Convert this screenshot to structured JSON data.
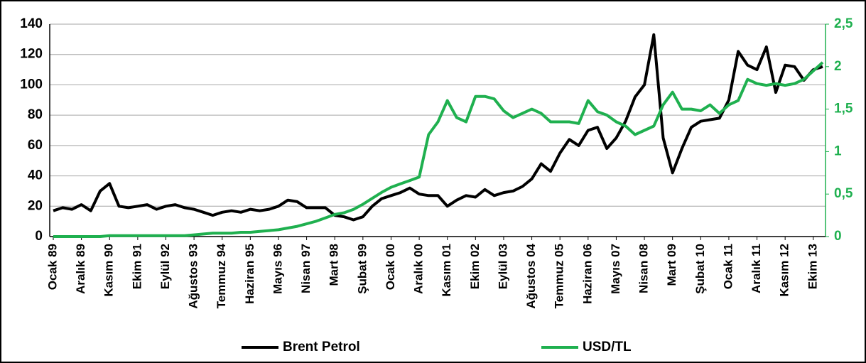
{
  "chart_data": {
    "type": "line",
    "categories": [
      "Ocak 89",
      null,
      null,
      "Aralık 89",
      null,
      null,
      "Kasım 90",
      null,
      null,
      "Ekim 91",
      null,
      null,
      "Eylül 92",
      null,
      null,
      "Ağustos 93",
      null,
      null,
      "Temmuz 94",
      null,
      null,
      "Haziran 95",
      null,
      null,
      "Mayıs 96",
      null,
      null,
      "Nisan 97",
      null,
      null,
      "Mart 98",
      null,
      null,
      "Şubat 99",
      null,
      null,
      "Ocak 00",
      null,
      null,
      "Aralık 00",
      null,
      null,
      "Kasım 01",
      null,
      null,
      "Ekim 02",
      null,
      null,
      "Eylül 03",
      null,
      null,
      "Ağustos 04",
      null,
      null,
      "Temmuz 05",
      null,
      null,
      "Haziran 06",
      null,
      null,
      "Mayıs 07",
      null,
      null,
      "Nisan 08",
      null,
      null,
      "Mart 09",
      null,
      null,
      "Şubat 10",
      null,
      null,
      "Ocak 11",
      null,
      null,
      "Aralık 11",
      null,
      null,
      "Kasım 12",
      null,
      null,
      "Ekim 13",
      null
    ],
    "series": [
      {
        "name": "Brent Petrol",
        "color": "#000000",
        "values": [
          17,
          19,
          18,
          21,
          17,
          30,
          35,
          20,
          19,
          20,
          21,
          18,
          20,
          21,
          19,
          18,
          16,
          14,
          16,
          17,
          16,
          18,
          17,
          18,
          20,
          24,
          23,
          19,
          19,
          19,
          14,
          13,
          11,
          13,
          20,
          25,
          27,
          29,
          32,
          28,
          27,
          27,
          20,
          24,
          27,
          26,
          31,
          27,
          29,
          30,
          33,
          38,
          48,
          43,
          55,
          64,
          60,
          70,
          72,
          58,
          65,
          76,
          92,
          100,
          133,
          65,
          42,
          58,
          72,
          76,
          77,
          78,
          90,
          122,
          113,
          110,
          125,
          95,
          113,
          112,
          103,
          110,
          112
        ]
      },
      {
        "name": "USD/TL",
        "color": "#1fb04f",
        "axis": "y2",
        "values": [
          0,
          0,
          0,
          0,
          0,
          0,
          0.01,
          0.01,
          0.01,
          0.01,
          0.01,
          0.01,
          0.01,
          0.01,
          0.01,
          0.02,
          0.03,
          0.04,
          0.04,
          0.04,
          0.05,
          0.05,
          0.06,
          0.07,
          0.08,
          0.1,
          0.12,
          0.15,
          0.18,
          0.22,
          0.26,
          0.28,
          0.32,
          0.38,
          0.45,
          0.52,
          0.58,
          0.62,
          0.66,
          0.7,
          1.2,
          1.35,
          1.6,
          1.4,
          1.35,
          1.65,
          1.65,
          1.62,
          1.48,
          1.4,
          1.45,
          1.5,
          1.45,
          1.35,
          1.35,
          1.35,
          1.33,
          1.6,
          1.47,
          1.43,
          1.35,
          1.3,
          1.2,
          1.25,
          1.3,
          1.55,
          1.7,
          1.5,
          1.5,
          1.48,
          1.55,
          1.45,
          1.55,
          1.6,
          1.85,
          1.8,
          1.78,
          1.8,
          1.78,
          1.8,
          1.85,
          1.95,
          2.05
        ]
      }
    ],
    "ylim": [
      0,
      140
    ],
    "yticks": [
      0,
      20,
      40,
      60,
      80,
      100,
      120,
      140
    ],
    "y2lim": [
      0,
      2.5
    ],
    "y2ticks": [
      0,
      {
        "value": 0.5,
        "label": "0,5"
      },
      1,
      {
        "value": 1.5,
        "label": "1,5"
      },
      2,
      {
        "value": 2.5,
        "label": "2,5"
      }
    ],
    "grid": true,
    "legend": "bottom"
  }
}
